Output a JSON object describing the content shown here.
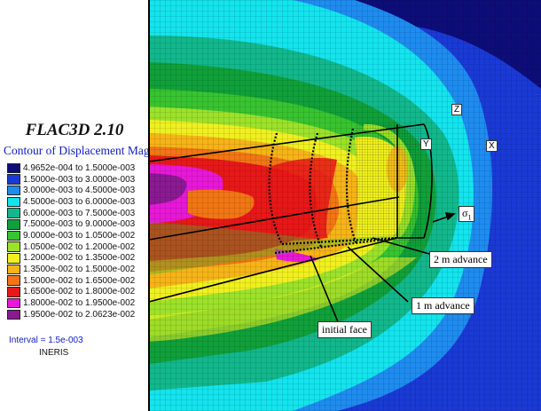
{
  "legend": {
    "app_title": "FLAC3D 2.10",
    "contour_title": "Contour of Displacement Mag.",
    "items": [
      {
        "label": "4.9652e-004 to  1.5000e-003",
        "color": "#0d0d7a"
      },
      {
        "label": "1.5000e-003 to  3.0000e-003",
        "color": "#1a3ad6"
      },
      {
        "label": "3.0000e-003 to  4.5000e-003",
        "color": "#1e8cf0"
      },
      {
        "label": "4.5000e-003 to  6.0000e-003",
        "color": "#14e4ee"
      },
      {
        "label": "6.0000e-003 to  7.5000e-003",
        "color": "#12b88c"
      },
      {
        "label": "7.5000e-003 to  9.0000e-003",
        "color": "#10a03a"
      },
      {
        "label": "9.0000e-003 to  1.0500e-002",
        "color": "#38c430"
      },
      {
        "label": "1.0500e-002 to  1.2000e-002",
        "color": "#9ce22a"
      },
      {
        "label": "1.2000e-002 to  1.3500e-002",
        "color": "#f0f020"
      },
      {
        "label": "1.3500e-002 to  1.5000e-002",
        "color": "#f6b418"
      },
      {
        "label": "1.5000e-002 to  1.6500e-002",
        "color": "#f27614"
      },
      {
        "label": "1.6500e-002 to  1.8000e-002",
        "color": "#e81818"
      },
      {
        "label": "1.8000e-002 to  1.9500e-002",
        "color": "#e818d8"
      },
      {
        "label": "1.9500e-002 to  2.0623e-002",
        "color": "#8a1a92"
      }
    ],
    "interval": "Interval =  1.5e-003",
    "credit": "INERIS"
  },
  "annotations": {
    "advance_2m": "2 m advance",
    "advance_1m": "1 m advance",
    "initial_face": "initial face",
    "sigma": "σ",
    "sigma_sub": "1"
  },
  "axes": {
    "z": "Z",
    "y": "Y",
    "x": "X"
  }
}
